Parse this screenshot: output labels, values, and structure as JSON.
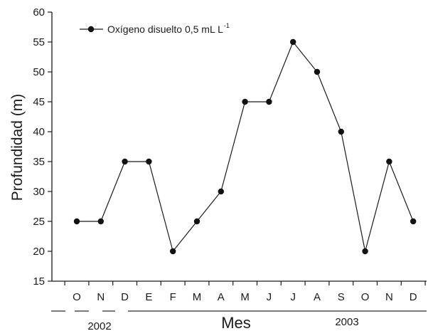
{
  "chart_data": {
    "type": "line",
    "title": "",
    "xlabel": "Mes",
    "ylabel": "Profundidad (m)",
    "categories": [
      "O",
      "N",
      "D",
      "E",
      "F",
      "M",
      "A",
      "M",
      "J",
      "J",
      "A",
      "S",
      "O",
      "N",
      "D"
    ],
    "series": [
      {
        "name": "Oxígeno disuelto 0,5 mL L",
        "name_superscript": "-1",
        "values": [
          25,
          25,
          35,
          35,
          20,
          25,
          30,
          45,
          45,
          55,
          50,
          40,
          20,
          35,
          25
        ]
      }
    ],
    "ylim": [
      15,
      60
    ],
    "yticks": [
      15,
      20,
      25,
      30,
      35,
      40,
      45,
      50,
      55,
      60
    ],
    "year_groups": [
      {
        "label": "2002",
        "start": 0,
        "end": 2
      },
      {
        "label": "2003",
        "start": 2,
        "end": 14
      }
    ],
    "legend_position": "top-left",
    "grid": false
  }
}
